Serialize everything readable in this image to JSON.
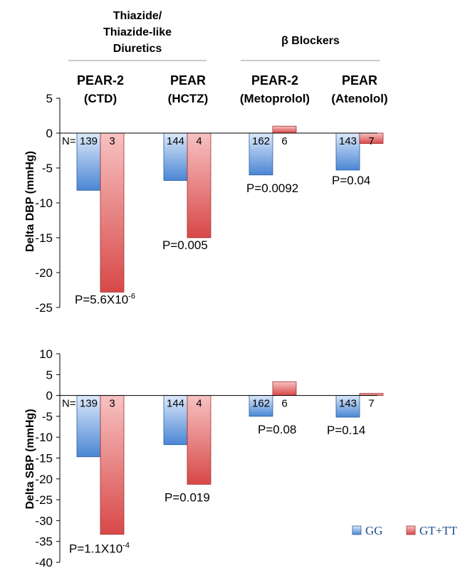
{
  "headers": {
    "diuretics": [
      "Thiazide/",
      "Thiazide-like",
      "Diuretics"
    ],
    "beta": "β Blockers",
    "groups": [
      {
        "line1": "PEAR-2",
        "line2": "(CTD)"
      },
      {
        "line1": "PEAR",
        "line2": "(HCTZ)"
      },
      {
        "line1": "PEAR-2",
        "line2": "(Metoprolol)"
      },
      {
        "line1": "PEAR",
        "line2": "(Atenolol)"
      }
    ]
  },
  "legend": {
    "gg": "GG",
    "gt": "GT+TT"
  },
  "colors": {
    "gg": "#4a86d4",
    "gt": "#d84848"
  },
  "chart_data": [
    {
      "type": "bar",
      "ylabel": "Delta DBP (mmHg)",
      "ylim": [
        -25,
        5
      ],
      "yticks": [
        5,
        0,
        -5,
        -10,
        -15,
        -20,
        -25
      ],
      "categories": [
        "PEAR-2 (CTD)",
        "PEAR (HCTZ)",
        "PEAR-2 (Metoprolol)",
        "PEAR (Atenolol)"
      ],
      "series": [
        {
          "name": "GG",
          "values": [
            -8.2,
            -6.8,
            -6.0,
            -5.3
          ],
          "n": [
            "139",
            "144",
            "162",
            "143"
          ]
        },
        {
          "name": "GT+TT",
          "values": [
            -22.8,
            -15.0,
            1.0,
            -1.5
          ],
          "n": [
            "3",
            "4",
            "6",
            "7"
          ]
        }
      ],
      "n_prefix": "N=",
      "pvalues": [
        {
          "base": "P=5.6X10",
          "sup": "-6"
        },
        {
          "base": "P=0.005",
          "sup": ""
        },
        {
          "base": "P=0.0092",
          "sup": ""
        },
        {
          "base": "P=0.04",
          "sup": ""
        }
      ]
    },
    {
      "type": "bar",
      "ylabel": "Delta SBP (mmHg)",
      "ylim": [
        -40,
        10
      ],
      "yticks": [
        10,
        5,
        0,
        -5,
        -10,
        -15,
        -20,
        -25,
        -30,
        -35,
        -40
      ],
      "categories": [
        "PEAR-2 (CTD)",
        "PEAR (HCTZ)",
        "PEAR-2 (Metoprolol)",
        "PEAR (Atenolol)"
      ],
      "series": [
        {
          "name": "GG",
          "values": [
            -14.7,
            -11.8,
            -5.0,
            -5.2
          ],
          "n": [
            "139",
            "144",
            "162",
            "143"
          ]
        },
        {
          "name": "GT+TT",
          "values": [
            -33.3,
            -21.3,
            3.3,
            0.5
          ],
          "n": [
            "3",
            "4",
            "6",
            "7"
          ]
        }
      ],
      "n_prefix": "N=",
      "pvalues": [
        {
          "base": "P=1.1X10",
          "sup": "-4"
        },
        {
          "base": "P=0.019",
          "sup": ""
        },
        {
          "base": "P=0.08",
          "sup": ""
        },
        {
          "base": "P=0.14",
          "sup": ""
        }
      ]
    }
  ]
}
